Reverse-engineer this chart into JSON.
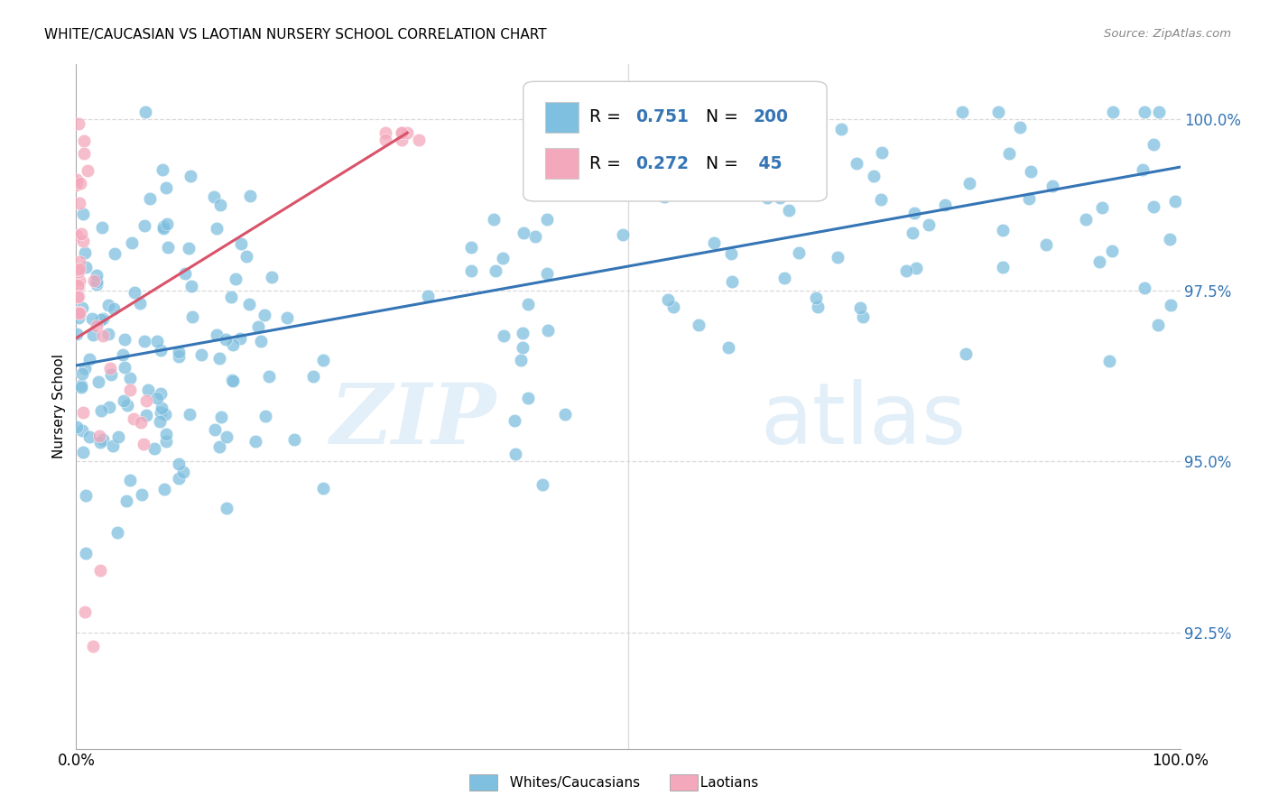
{
  "title": "WHITE/CAUCASIAN VS LAOTIAN NURSERY SCHOOL CORRELATION CHART",
  "source": "Source: ZipAtlas.com",
  "ylabel": "Nursery School",
  "y_ticks": [
    "92.5%",
    "95.0%",
    "97.5%",
    "100.0%"
  ],
  "y_tick_vals": [
    0.925,
    0.95,
    0.975,
    1.0
  ],
  "x_range": [
    0.0,
    1.0
  ],
  "y_range": [
    0.908,
    1.008
  ],
  "blue_color": "#7fbfdf",
  "pink_color": "#f4a8bc",
  "blue_line_color": "#3575b5",
  "pink_line_color": "#d9536a",
  "legend_r_blue": "0.751",
  "legend_n_blue": "200",
  "legend_r_pink": "0.272",
  "legend_n_pink": "45",
  "legend_text_color": "#3575b5",
  "watermark_zip": "ZIP",
  "watermark_atlas": "atlas",
  "grid_color": "#d8d8d8",
  "blue_line_y0": 0.964,
  "blue_line_y1": 0.993,
  "pink_line_x0": 0.0,
  "pink_line_x1": 0.3,
  "pink_line_y0": 0.968,
  "pink_line_y1": 0.998
}
